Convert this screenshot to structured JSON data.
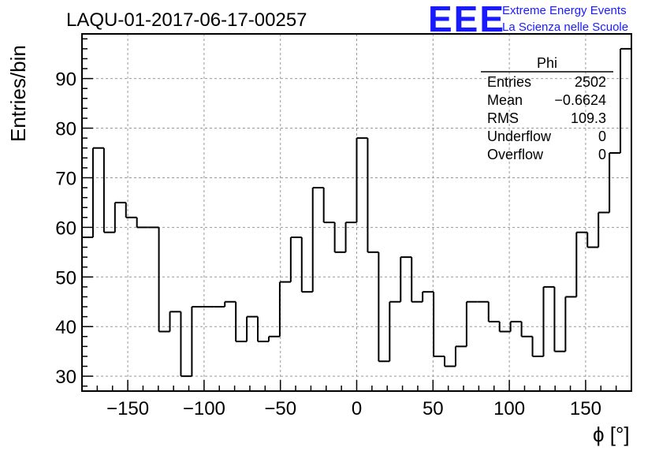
{
  "header": {
    "run_title": "LAQU-01-2017-06-17-00257",
    "logo_text": "EEE",
    "logo_line1": "Extreme Energy Events",
    "logo_line2": "La Scienza nelle Scuole",
    "brand_color": "#1a1aff"
  },
  "stats_box": {
    "name": "Phi",
    "rows": [
      {
        "label": "Entries",
        "value": "2502"
      },
      {
        "label": "Mean",
        "value": "−0.6624"
      },
      {
        "label": "RMS",
        "value": "109.3"
      },
      {
        "label": "Underflow",
        "value": "0"
      },
      {
        "label": "Overflow",
        "value": "0"
      }
    ]
  },
  "chart_data": {
    "type": "histogram",
    "title": "LAQU-01-2017-06-17-00257",
    "xlabel": "ϕ [°]",
    "ylabel": "Entries/bin",
    "xlim": [
      -180,
      180
    ],
    "ylim": [
      27,
      99
    ],
    "grid": true,
    "bin_width": 7.2,
    "x_ticks": [
      -150,
      -100,
      -50,
      0,
      50,
      100,
      150
    ],
    "x_tick_labels": [
      "−150",
      "−100",
      "−50",
      "0",
      "50",
      "100",
      "150"
    ],
    "y_ticks": [
      30,
      40,
      50,
      60,
      70,
      80,
      90
    ],
    "y_tick_labels": [
      "30",
      "40",
      "50",
      "60",
      "70",
      "80",
      "90"
    ],
    "values": [
      58,
      76,
      59,
      65,
      62,
      60,
      60,
      39,
      43,
      30,
      44,
      44,
      44,
      45,
      37,
      42,
      37,
      38,
      49,
      58,
      47,
      68,
      61,
      55,
      61,
      78,
      55,
      33,
      45,
      54,
      45,
      47,
      34,
      32,
      36,
      45,
      45,
      41,
      39,
      41,
      38,
      34,
      48,
      35,
      46,
      59,
      56,
      63,
      75,
      96
    ]
  }
}
